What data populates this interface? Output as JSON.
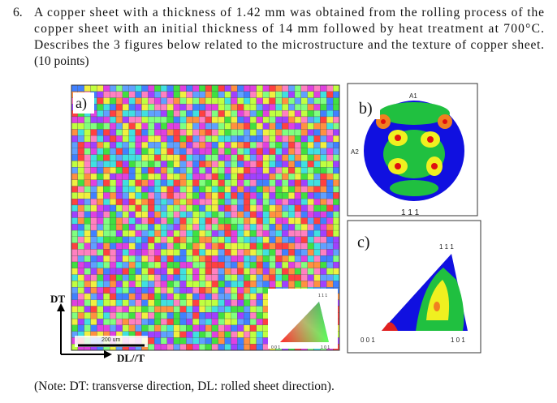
{
  "question": {
    "number": "6.",
    "lines": [
      "A copper sheet with a thickness of 1.42 mm was obtained from the rolling process of the",
      "copper sheet with an initial thickness of 14 mm followed by heat treatment at 700°C.",
      "Describes the 3 figures below related to the microstructure and the texture of copper sheet.",
      "(10 points)"
    ]
  },
  "figure_a": {
    "label": "a)",
    "scale_bar": "200 um",
    "axis_vertical": "DT",
    "axis_horizontal": "DL//T",
    "legend": {
      "top": "1 1 1",
      "left": "0 0 1",
      "right": "1 0 1"
    }
  },
  "figure_b": {
    "label": "b)",
    "top": "A1",
    "left": "A2",
    "caption": "1 1 1"
  },
  "figure_c": {
    "label": "c)",
    "top": "1 1 1",
    "left": "0 0 1",
    "right": "1 0 1"
  },
  "note": "(Note: DT: transverse direction, DL: rolled sheet direction)."
}
